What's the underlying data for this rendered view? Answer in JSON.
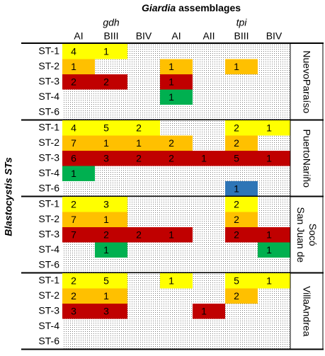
{
  "title_italic": "Giardia",
  "title_rest": "assemblages",
  "y_label": "Blastocystis STs",
  "subheaders": [
    "gdh",
    "tpi"
  ],
  "columns": [
    "AI",
    "BIII",
    "BIV",
    "AI",
    "AII",
    "BIII",
    "BIV"
  ],
  "groups": [
    {
      "name_lines": [
        "NuevoParaíso"
      ],
      "rows": [
        {
          "label": "ST-1",
          "color": "#ffff00",
          "cells": [
            4,
            1,
            null,
            null,
            null,
            null,
            null
          ]
        },
        {
          "label": "ST-2",
          "color": "#ffc000",
          "cells": [
            1,
            null,
            null,
            1,
            null,
            1,
            null
          ]
        },
        {
          "label": "ST-3",
          "color": "#c00000",
          "cells": [
            2,
            2,
            null,
            1,
            null,
            null,
            null
          ]
        },
        {
          "label": "ST-4",
          "color": "#00b050",
          "cells": [
            null,
            null,
            null,
            1,
            null,
            null,
            null
          ]
        },
        {
          "label": "ST-6",
          "color": "#2e75b6",
          "cells": [
            null,
            null,
            null,
            null,
            null,
            null,
            null
          ]
        }
      ]
    },
    {
      "name_lines": [
        "PuertoNariño"
      ],
      "rows": [
        {
          "label": "ST-1",
          "color": "#ffff00",
          "cells": [
            4,
            5,
            2,
            null,
            null,
            2,
            1
          ]
        },
        {
          "label": "ST-2",
          "color": "#ffc000",
          "cells": [
            7,
            1,
            1,
            2,
            null,
            2,
            null
          ]
        },
        {
          "label": "ST-3",
          "color": "#c00000",
          "cells": [
            6,
            3,
            2,
            2,
            1,
            5,
            1
          ]
        },
        {
          "label": "ST-4",
          "color": "#00b050",
          "cells": [
            1,
            null,
            null,
            null,
            null,
            null,
            null
          ]
        },
        {
          "label": "ST-6",
          "color": "#2e75b6",
          "cells": [
            null,
            null,
            null,
            null,
            null,
            1,
            null
          ]
        }
      ]
    },
    {
      "name_lines": [
        "San Juan de",
        "Socó"
      ],
      "rows": [
        {
          "label": "ST-1",
          "color": "#ffff00",
          "cells": [
            2,
            3,
            null,
            null,
            null,
            2,
            null
          ]
        },
        {
          "label": "ST-2",
          "color": "#ffc000",
          "cells": [
            7,
            1,
            null,
            null,
            null,
            2,
            null
          ]
        },
        {
          "label": "ST-3",
          "color": "#c00000",
          "cells": [
            7,
            2,
            2,
            1,
            null,
            2,
            1
          ]
        },
        {
          "label": "ST-4",
          "color": "#00b050",
          "cells": [
            null,
            1,
            null,
            null,
            null,
            null,
            1
          ]
        },
        {
          "label": "ST-6",
          "color": "#2e75b6",
          "cells": [
            null,
            null,
            null,
            null,
            null,
            null,
            null
          ]
        }
      ]
    },
    {
      "name_lines": [
        "VillaAndrea"
      ],
      "rows": [
        {
          "label": "ST-1",
          "color": "#ffff00",
          "cells": [
            2,
            5,
            null,
            1,
            null,
            5,
            1
          ]
        },
        {
          "label": "ST-2",
          "color": "#ffc000",
          "cells": [
            2,
            1,
            null,
            null,
            null,
            2,
            null
          ]
        },
        {
          "label": "ST-3",
          "color": "#c00000",
          "cells": [
            3,
            3,
            null,
            null,
            1,
            null,
            null
          ]
        },
        {
          "label": "ST-4",
          "color": "#00b050",
          "cells": [
            null,
            null,
            null,
            null,
            null,
            null,
            null
          ]
        },
        {
          "label": "ST-6",
          "color": "#2e75b6",
          "cells": [
            null,
            null,
            null,
            null,
            null,
            null,
            null
          ]
        }
      ]
    }
  ]
}
